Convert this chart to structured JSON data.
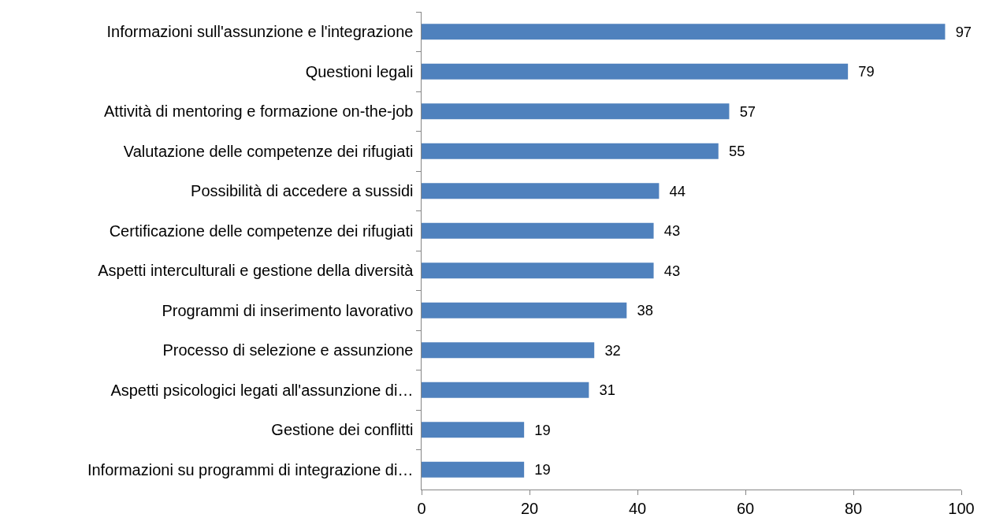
{
  "chart_data": {
    "type": "bar",
    "orientation": "horizontal",
    "categories": [
      "Informazioni sull'assunzione e l'integrazione",
      "Questioni legali",
      "Attività di mentoring e formazione on-the-job",
      "Valutazione delle competenze dei rifugiati",
      "Possibilità di accedere a sussidi",
      "Certificazione delle competenze dei rifugiati",
      "Aspetti interculturali e gestione della diversità",
      "Programmi di inserimento lavorativo",
      "Processo di selezione e assunzione",
      "Aspetti psicologici legati all'assunzione di…",
      "Gestione dei conflitti",
      "Informazioni su programmi di integrazione di…"
    ],
    "values": [
      97,
      79,
      57,
      55,
      44,
      43,
      43,
      38,
      32,
      31,
      19,
      19
    ],
    "color": "#4f81bd",
    "xlim": [
      0,
      100
    ],
    "xticks": [
      0,
      20,
      40,
      60,
      80,
      100
    ],
    "grid": false,
    "data_labels": true
  }
}
